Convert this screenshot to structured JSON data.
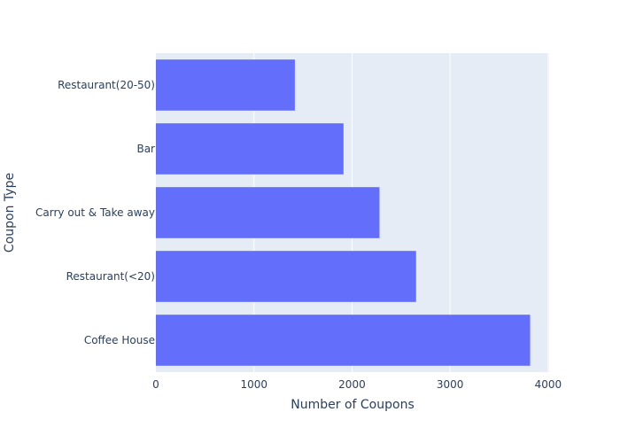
{
  "chart_data": {
    "type": "bar",
    "orientation": "horizontal",
    "categories": [
      "Coffee House",
      "Restaurant(<20)",
      "Carry out & Take away",
      "Bar",
      "Restaurant(20-50)"
    ],
    "values": [
      3816,
      2653,
      2280,
      1913,
      1417
    ],
    "xlabel": "Number of Coupons",
    "ylabel": "Coupon Type",
    "xlim": [
      0,
      4010
    ],
    "x_ticks": [
      0,
      1000,
      2000,
      3000,
      4000
    ],
    "grid": true,
    "colors": {
      "bar": "#636efa",
      "plot_bg": "#e5ecf6",
      "grid": "#ffffff",
      "text": "#2a3f5f"
    }
  }
}
